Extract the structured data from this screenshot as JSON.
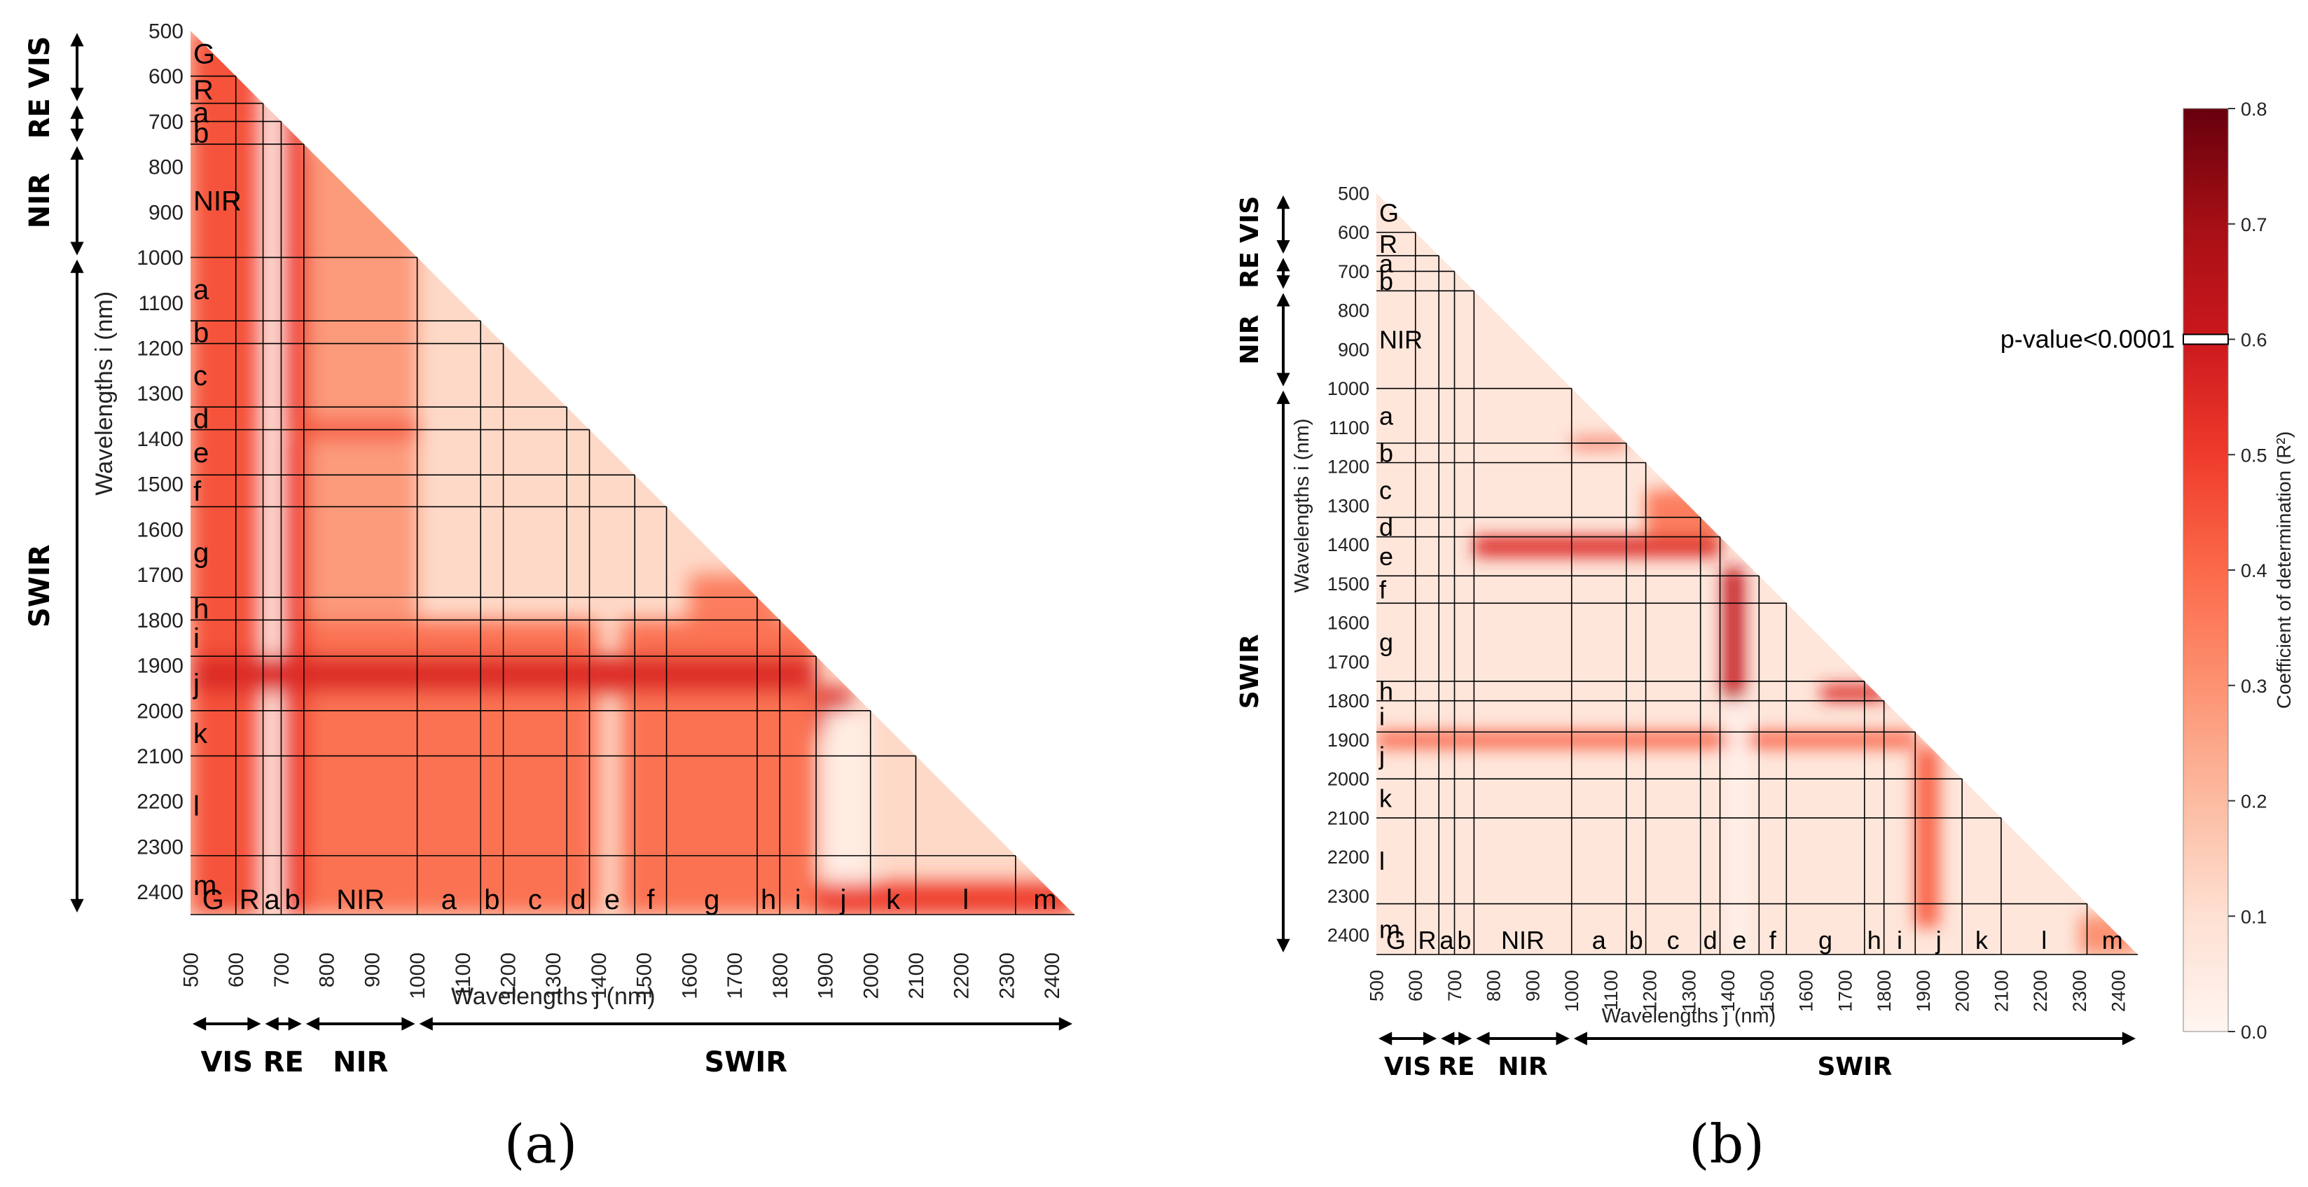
{
  "chart_data": [
    {
      "type": "heatmap",
      "panel_label": "(a)",
      "xlabel": "Wavelengths j (nm)",
      "ylabel": "Wavelengths i (nm)",
      "xlim": [
        500,
        2450
      ],
      "ylim": [
        500,
        2450
      ],
      "ticks": [
        500,
        600,
        700,
        800,
        900,
        1000,
        1100,
        1200,
        1300,
        1400,
        1500,
        1600,
        1700,
        1800,
        1900,
        2000,
        2100,
        2200,
        2300,
        2400
      ],
      "band_boundaries": [
        600,
        660,
        700,
        750,
        1000,
        1140,
        1190,
        1330,
        1380,
        1480,
        1550,
        1750,
        1800,
        1880,
        2000,
        2100,
        2320,
        2450
      ],
      "band_labels": [
        {
          "label": "G",
          "center": 550
        },
        {
          "label": "R",
          "center": 630
        },
        {
          "label": "a",
          "center": 680
        },
        {
          "label": "b",
          "center": 725
        },
        {
          "label": "NIR",
          "center": 875
        },
        {
          "label": "a",
          "center": 1070
        },
        {
          "label": "b",
          "center": 1165
        },
        {
          "label": "c",
          "center": 1260
        },
        {
          "label": "d",
          "center": 1355
        },
        {
          "label": "e",
          "center": 1430
        },
        {
          "label": "f",
          "center": 1515
        },
        {
          "label": "g",
          "center": 1650
        },
        {
          "label": "h",
          "center": 1775
        },
        {
          "label": "i",
          "center": 1840
        },
        {
          "label": "j",
          "center": 1940
        },
        {
          "label": "k",
          "center": 2050
        },
        {
          "label": "l",
          "center": 2210
        },
        {
          "label": "m",
          "center": 2385
        }
      ],
      "regions": [
        {
          "label": "VIS",
          "start": 500,
          "end": 660
        },
        {
          "label": "RE",
          "start": 660,
          "end": 750
        },
        {
          "label": "NIR",
          "start": 750,
          "end": 1000
        },
        {
          "label": "SWIR",
          "start": 1000,
          "end": 2450
        }
      ],
      "regions_vertical": [
        {
          "label": "RE VIS",
          "start": 500,
          "end": 750
        },
        {
          "label": "NIR",
          "start": 750,
          "end": 1000
        },
        {
          "label": "SWIR",
          "start": 1000,
          "end": 2450
        }
      ],
      "base_r2": 0.12,
      "hotspots": [
        {
          "i": [
            500,
            2450
          ],
          "j": [
            500,
            660
          ],
          "r2": 0.45
        },
        {
          "i": [
            500,
            2450
          ],
          "j": [
            700,
            760
          ],
          "r2": 0.5
        },
        {
          "i": [
            500,
            2450
          ],
          "j": [
            660,
            700
          ],
          "r2": 0.02
        },
        {
          "i": [
            760,
            1800
          ],
          "j": [
            760,
            1000
          ],
          "r2": 0.28
        },
        {
          "i": [
            1800,
            2450
          ],
          "j": [
            760,
            1400
          ],
          "r2": 0.38
        },
        {
          "i": [
            1800,
            2450
          ],
          "j": [
            1450,
            1880
          ],
          "r2": 0.38
        },
        {
          "i": [
            1880,
            1960
          ],
          "j": [
            500,
            1880
          ],
          "r2": 0.55
        },
        {
          "i": [
            1360,
            1400
          ],
          "j": [
            700,
            1000
          ],
          "r2": 0.45
        },
        {
          "i": [
            2380,
            2450
          ],
          "j": [
            1880,
            2450
          ],
          "r2": 0.5
        },
        {
          "i": [
            1950,
            2050
          ],
          "j": [
            1880,
            1960
          ],
          "r2": 0.55
        },
        {
          "i": [
            1700,
            1800
          ],
          "j": [
            1600,
            1800
          ],
          "r2": 0.35
        },
        {
          "i": [
            2000,
            2380
          ],
          "j": [
            1900,
            2000
          ],
          "r2": 0.04
        }
      ]
    },
    {
      "type": "heatmap",
      "panel_label": "(b)",
      "xlabel": "Wavelengths j (nm)",
      "ylabel": "Wavelengths i (nm)",
      "xlim": [
        500,
        2450
      ],
      "ylim": [
        500,
        2450
      ],
      "ticks": [
        500,
        600,
        700,
        800,
        900,
        1000,
        1100,
        1200,
        1300,
        1400,
        1500,
        1600,
        1700,
        1800,
        1900,
        2000,
        2100,
        2200,
        2300,
        2400
      ],
      "band_boundaries": [
        600,
        660,
        700,
        750,
        1000,
        1140,
        1190,
        1330,
        1380,
        1480,
        1550,
        1750,
        1800,
        1880,
        2000,
        2100,
        2320,
        2450
      ],
      "band_labels": [
        {
          "label": "G",
          "center": 550
        },
        {
          "label": "R",
          "center": 630
        },
        {
          "label": "a",
          "center": 680
        },
        {
          "label": "b",
          "center": 725
        },
        {
          "label": "NIR",
          "center": 875
        },
        {
          "label": "a",
          "center": 1070
        },
        {
          "label": "b",
          "center": 1165
        },
        {
          "label": "c",
          "center": 1260
        },
        {
          "label": "d",
          "center": 1355
        },
        {
          "label": "e",
          "center": 1430
        },
        {
          "label": "f",
          "center": 1515
        },
        {
          "label": "g",
          "center": 1650
        },
        {
          "label": "h",
          "center": 1775
        },
        {
          "label": "i",
          "center": 1840
        },
        {
          "label": "j",
          "center": 1940
        },
        {
          "label": "k",
          "center": 2050
        },
        {
          "label": "l",
          "center": 2210
        },
        {
          "label": "m",
          "center": 2385
        }
      ],
      "regions": [
        {
          "label": "VIS",
          "start": 500,
          "end": 660
        },
        {
          "label": "RE",
          "start": 660,
          "end": 750
        },
        {
          "label": "NIR",
          "start": 750,
          "end": 1000
        },
        {
          "label": "SWIR",
          "start": 1000,
          "end": 2450
        }
      ],
      "regions_vertical": [
        {
          "label": "RE VIS",
          "start": 500,
          "end": 750
        },
        {
          "label": "NIR",
          "start": 750,
          "end": 1000
        },
        {
          "label": "SWIR",
          "start": 1000,
          "end": 2450
        }
      ],
      "base_r2": 0.07,
      "hotspots": [
        {
          "i": [
            1380,
            1430
          ],
          "j": [
            750,
            1380
          ],
          "r2": 0.55
        },
        {
          "i": [
            1460,
            1800
          ],
          "j": [
            1390,
            1440
          ],
          "r2": 0.62
        },
        {
          "i": [
            1760,
            1800
          ],
          "j": [
            1640,
            1800
          ],
          "r2": 0.55
        },
        {
          "i": [
            1880,
            1920
          ],
          "j": [
            500,
            1880
          ],
          "r2": 0.42
        },
        {
          "i": [
            1920,
            2380
          ],
          "j": [
            1880,
            1940
          ],
          "r2": 0.42
        },
        {
          "i": [
            1260,
            1380
          ],
          "j": [
            1190,
            1380
          ],
          "r2": 0.35
        },
        {
          "i": [
            1130,
            1150
          ],
          "j": [
            1000,
            1140
          ],
          "r2": 0.45
        },
        {
          "i": [
            1800,
            2450
          ],
          "j": [
            1400,
            1450
          ],
          "r2": 0.02
        },
        {
          "i": [
            2350,
            2450
          ],
          "j": [
            2300,
            2450
          ],
          "r2": 0.3
        }
      ]
    }
  ],
  "colorbar": {
    "label": "Coefficient of determination (R²)",
    "min": 0.0,
    "max": 0.8,
    "ticks": [
      "0.0",
      "0.1",
      "0.2",
      "0.3",
      "0.4",
      "0.5",
      "0.6",
      "0.7",
      "0.8"
    ],
    "marker_value": 0.6,
    "marker_label": "p-value<0.0001"
  },
  "colors": {
    "scale": [
      "#fff5f0",
      "#fee0d2",
      "#fcbba1",
      "#fc9272",
      "#fb6a4a",
      "#ef3b2c",
      "#cb181d",
      "#a50f15",
      "#67000d"
    ]
  }
}
